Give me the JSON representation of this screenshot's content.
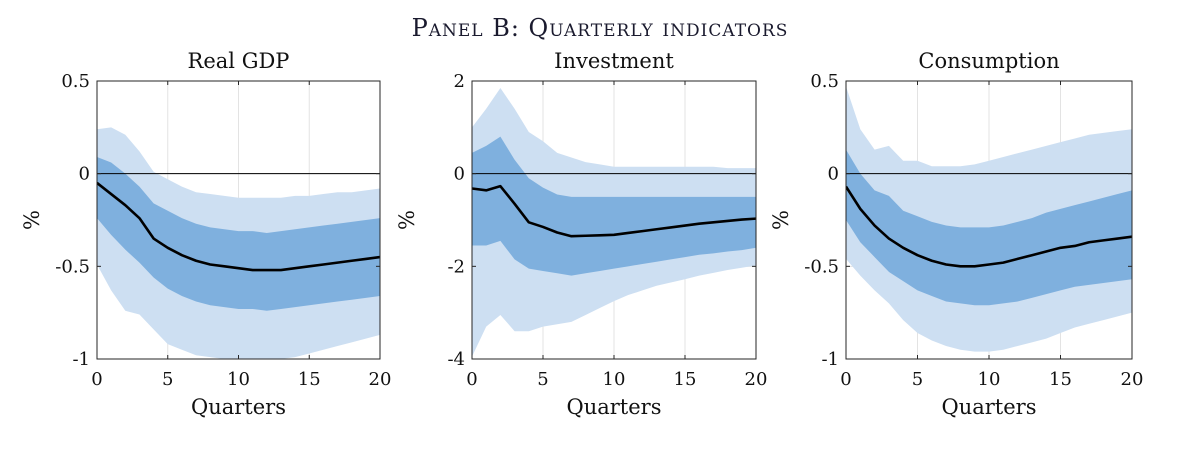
{
  "panel_title": "Panel B: Quarterly indicators",
  "colors": {
    "outer_band": "#cddff2",
    "inner_band": "#7fb0de",
    "median_line": "#000000",
    "zero_line": "#000000",
    "grid": "#e3e3e3"
  },
  "chart_data": [
    {
      "type": "line",
      "title": "Real GDP",
      "xlabel": "Quarters",
      "ylabel": "%",
      "xlim": [
        0,
        20
      ],
      "ylim": [
        -1,
        0.5
      ],
      "xticks": [
        0,
        5,
        10,
        15,
        20
      ],
      "xtick_labels": [
        "0",
        "5",
        "10",
        "15",
        "20"
      ],
      "yticks": [
        0.5,
        0,
        -0.5,
        -1
      ],
      "ytick_labels": [
        "0.5",
        "0",
        "-0.5",
        "-1"
      ],
      "grid": true,
      "x": [
        0,
        1,
        2,
        3,
        4,
        5,
        6,
        7,
        8,
        9,
        10,
        11,
        12,
        13,
        14,
        15,
        16,
        17,
        18,
        19,
        20
      ],
      "series": [
        {
          "role": "median",
          "values": [
            -0.05,
            -0.11,
            -0.17,
            -0.24,
            -0.35,
            -0.4,
            -0.44,
            -0.47,
            -0.49,
            -0.5,
            -0.51,
            -0.52,
            -0.52,
            -0.52,
            -0.51,
            -0.5,
            -0.49,
            -0.48,
            -0.47,
            -0.46,
            -0.45
          ]
        },
        {
          "role": "inner_band",
          "upper": [
            0.09,
            0.06,
            0.0,
            -0.07,
            -0.16,
            -0.2,
            -0.24,
            -0.27,
            -0.29,
            -0.3,
            -0.31,
            -0.31,
            -0.32,
            -0.31,
            -0.3,
            -0.29,
            -0.28,
            -0.27,
            -0.26,
            -0.25,
            -0.24
          ],
          "lower": [
            -0.24,
            -0.33,
            -0.41,
            -0.48,
            -0.56,
            -0.62,
            -0.66,
            -0.69,
            -0.71,
            -0.72,
            -0.73,
            -0.73,
            -0.74,
            -0.73,
            -0.72,
            -0.71,
            -0.7,
            -0.69,
            -0.68,
            -0.67,
            -0.66
          ]
        },
        {
          "role": "outer_band",
          "upper": [
            0.24,
            0.25,
            0.21,
            0.12,
            0.01,
            -0.03,
            -0.07,
            -0.1,
            -0.11,
            -0.12,
            -0.13,
            -0.13,
            -0.13,
            -0.13,
            -0.12,
            -0.12,
            -0.11,
            -0.1,
            -0.1,
            -0.09,
            -0.08
          ],
          "lower": [
            -0.49,
            -0.63,
            -0.74,
            -0.76,
            -0.84,
            -0.92,
            -0.95,
            -0.98,
            -0.99,
            -1.0,
            -1.0,
            -1.0,
            -1.0,
            -1.0,
            -0.99,
            -0.97,
            -0.95,
            -0.93,
            -0.91,
            -0.89,
            -0.87
          ]
        }
      ]
    },
    {
      "type": "line",
      "title": "Investment",
      "xlabel": "Quarters",
      "ylabel": "%",
      "xlim": [
        0,
        20
      ],
      "ylim": [
        -4,
        2
      ],
      "xticks": [
        0,
        5,
        10,
        15,
        20
      ],
      "xtick_labels": [
        "0",
        "5",
        "10",
        "15",
        "20"
      ],
      "yticks": [
        2,
        0,
        -2,
        -4
      ],
      "ytick_labels": [
        "2",
        "0",
        "-2",
        "-4"
      ],
      "grid": true,
      "x": [
        0,
        1,
        2,
        3,
        4,
        5,
        6,
        7,
        8,
        9,
        10,
        11,
        12,
        13,
        14,
        15,
        16,
        17,
        18,
        19,
        20
      ],
      "series": [
        {
          "role": "median",
          "values": [
            -0.32,
            -0.36,
            -0.27,
            -0.65,
            -1.05,
            -1.15,
            -1.27,
            -1.35,
            -1.34,
            -1.33,
            -1.32,
            -1.28,
            -1.24,
            -1.2,
            -1.16,
            -1.12,
            -1.08,
            -1.05,
            -1.02,
            -0.99,
            -0.97
          ]
        },
        {
          "role": "inner_band",
          "upper": [
            0.45,
            0.6,
            0.8,
            0.3,
            -0.1,
            -0.3,
            -0.45,
            -0.5,
            -0.5,
            -0.5,
            -0.5,
            -0.5,
            -0.5,
            -0.5,
            -0.5,
            -0.5,
            -0.5,
            -0.5,
            -0.5,
            -0.5,
            -0.5
          ],
          "lower": [
            -1.55,
            -1.55,
            -1.45,
            -1.85,
            -2.05,
            -2.1,
            -2.15,
            -2.2,
            -2.15,
            -2.1,
            -2.05,
            -2.0,
            -1.95,
            -1.9,
            -1.85,
            -1.8,
            -1.75,
            -1.72,
            -1.68,
            -1.65,
            -1.6
          ]
        },
        {
          "role": "outer_band",
          "upper": [
            1.0,
            1.4,
            1.85,
            1.4,
            0.9,
            0.7,
            0.45,
            0.35,
            0.25,
            0.2,
            0.15,
            0.15,
            0.15,
            0.15,
            0.15,
            0.15,
            0.15,
            0.15,
            0.12,
            0.12,
            0.12
          ],
          "lower": [
            -3.95,
            -3.3,
            -3.05,
            -3.4,
            -3.4,
            -3.3,
            -3.25,
            -3.2,
            -3.05,
            -2.9,
            -2.75,
            -2.62,
            -2.52,
            -2.42,
            -2.35,
            -2.28,
            -2.2,
            -2.14,
            -2.08,
            -2.03,
            -1.98
          ]
        }
      ]
    },
    {
      "type": "line",
      "title": "Consumption",
      "xlabel": "Quarters",
      "ylabel": "%",
      "xlim": [
        0,
        20
      ],
      "ylim": [
        -1,
        0.5
      ],
      "xticks": [
        0,
        5,
        10,
        15,
        20
      ],
      "xtick_labels": [
        "0",
        "5",
        "10",
        "15",
        "20"
      ],
      "yticks": [
        0.5,
        0,
        -0.5,
        -1
      ],
      "ytick_labels": [
        "0.5",
        "0",
        "-0.5",
        "-1"
      ],
      "grid": true,
      "x": [
        0,
        1,
        2,
        3,
        4,
        5,
        6,
        7,
        8,
        9,
        10,
        11,
        12,
        13,
        14,
        15,
        16,
        17,
        18,
        19,
        20
      ],
      "series": [
        {
          "role": "median",
          "values": [
            -0.07,
            -0.19,
            -0.28,
            -0.35,
            -0.4,
            -0.44,
            -0.47,
            -0.49,
            -0.5,
            -0.5,
            -0.49,
            -0.48,
            -0.46,
            -0.44,
            -0.42,
            -0.4,
            -0.39,
            -0.37,
            -0.36,
            -0.35,
            -0.34
          ]
        },
        {
          "role": "inner_band",
          "upper": [
            0.13,
            0.0,
            -0.09,
            -0.12,
            -0.2,
            -0.23,
            -0.26,
            -0.28,
            -0.29,
            -0.29,
            -0.29,
            -0.28,
            -0.26,
            -0.24,
            -0.21,
            -0.19,
            -0.17,
            -0.15,
            -0.13,
            -0.11,
            -0.09
          ],
          "lower": [
            -0.25,
            -0.37,
            -0.45,
            -0.53,
            -0.58,
            -0.63,
            -0.66,
            -0.69,
            -0.7,
            -0.71,
            -0.71,
            -0.7,
            -0.69,
            -0.67,
            -0.65,
            -0.63,
            -0.61,
            -0.6,
            -0.59,
            -0.58,
            -0.57
          ]
        },
        {
          "role": "outer_band",
          "upper": [
            0.47,
            0.24,
            0.13,
            0.15,
            0.07,
            0.07,
            0.04,
            0.04,
            0.04,
            0.05,
            0.07,
            0.09,
            0.11,
            0.13,
            0.15,
            0.17,
            0.19,
            0.21,
            0.22,
            0.23,
            0.24
          ],
          "lower": [
            -0.46,
            -0.55,
            -0.63,
            -0.7,
            -0.79,
            -0.86,
            -0.9,
            -0.93,
            -0.95,
            -0.96,
            -0.96,
            -0.95,
            -0.93,
            -0.91,
            -0.89,
            -0.86,
            -0.83,
            -0.81,
            -0.79,
            -0.77,
            -0.75
          ]
        }
      ]
    }
  ]
}
